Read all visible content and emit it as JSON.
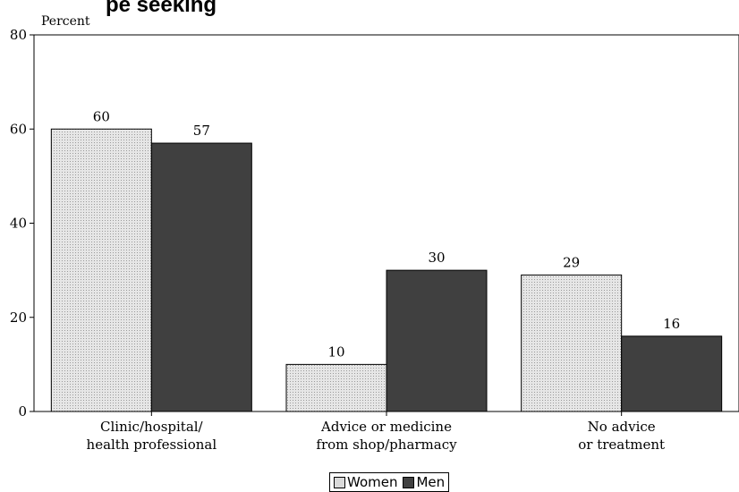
{
  "title_fragment": "pe seeking",
  "chart_data": {
    "type": "bar",
    "ylabel": "Percent",
    "ylim": [
      0,
      80
    ],
    "yticks": [
      0,
      20,
      40,
      60,
      80
    ],
    "categories": [
      [
        "Clinic/hospital/",
        "health professional"
      ],
      [
        "Advice or medicine",
        "from shop/pharmacy"
      ],
      [
        "No advice",
        "or treatment"
      ]
    ],
    "series": [
      {
        "name": "Women",
        "values": [
          60,
          10,
          29
        ],
        "color": "#d9d9d9"
      },
      {
        "name": "Men",
        "values": [
          57,
          30,
          16
        ],
        "color": "#404040"
      }
    ],
    "legend_position": "bottom-center",
    "grid": false
  }
}
